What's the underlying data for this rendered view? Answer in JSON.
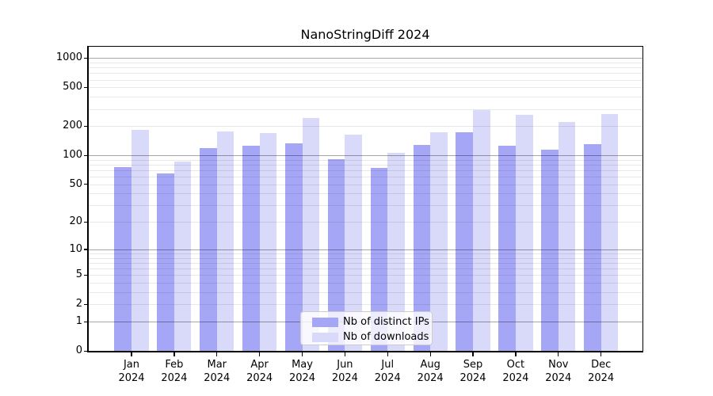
{
  "chart_data": {
    "type": "bar",
    "title": "NanoStringDiff 2024",
    "xlabel": "",
    "ylabel": "",
    "y_scale": "log-like (log10 of value+1), linear gap between 0 and 1",
    "y_ticks": [
      1000,
      500,
      200,
      100,
      50,
      20,
      10,
      5,
      2,
      1,
      0
    ],
    "ylim": [
      0,
      1300
    ],
    "grid": {
      "major_at": [
        1,
        10,
        100,
        1000
      ],
      "minor_at": "2-9, 20-90, 200-900",
      "shown": true
    },
    "x_year": "2024",
    "categories": [
      "Jan",
      "Feb",
      "Mar",
      "Apr",
      "May",
      "Jun",
      "Jul",
      "Aug",
      "Sep",
      "Oct",
      "Nov",
      "Dec"
    ],
    "series": [
      {
        "name": "Nb of distinct IPs",
        "color": "#a6a6f7",
        "values": [
          76,
          65,
          119,
          125,
          133,
          91,
          74,
          129,
          172,
          125,
          115,
          131
        ]
      },
      {
        "name": "Nb of downloads",
        "color": "#d9d9fa",
        "values": [
          183,
          87,
          177,
          170,
          242,
          163,
          107,
          174,
          290,
          260,
          221,
          264
        ]
      }
    ],
    "legend_position": "lower center"
  }
}
